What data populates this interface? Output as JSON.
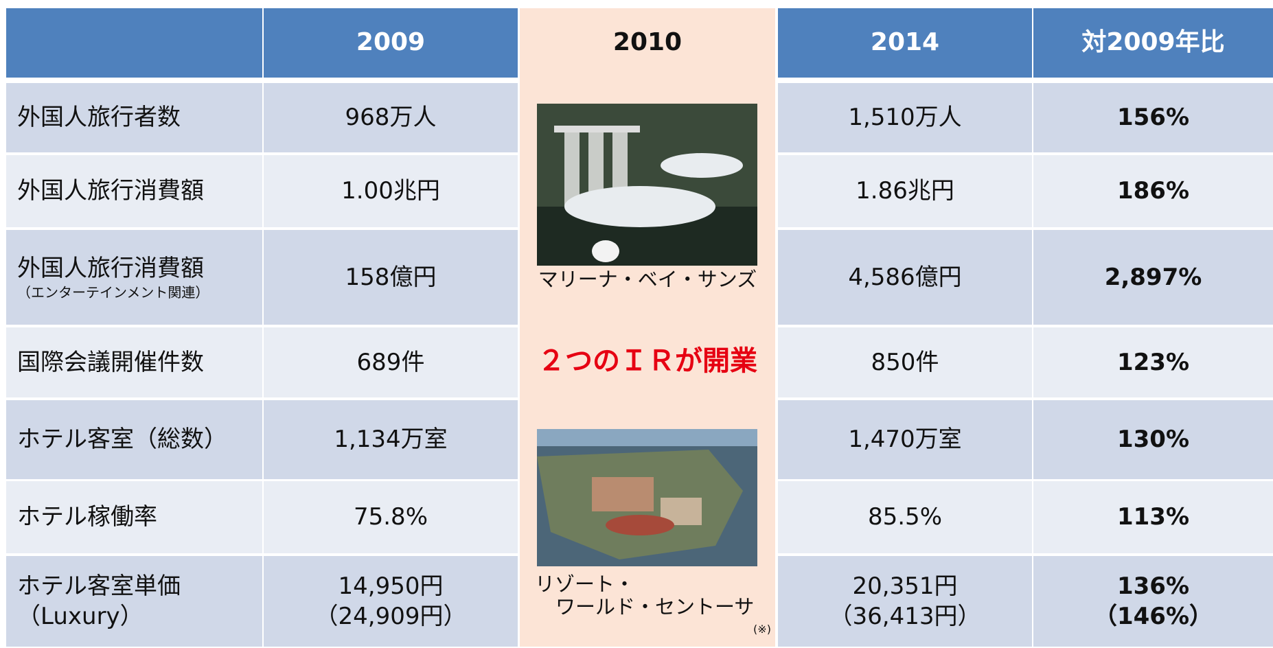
{
  "table": {
    "columns": [
      "2009",
      "2010",
      "2014",
      "対2009年比"
    ],
    "rows": [
      {
        "label": [
          "外国人旅行者数"
        ],
        "cells": [
          [
            "968万人"
          ],
          [
            "1,510万人"
          ],
          [
            "156%"
          ]
        ]
      },
      {
        "label": [
          "外国人旅行消費額"
        ],
        "cells": [
          [
            "1.00兆円"
          ],
          [
            "1.86兆円"
          ],
          [
            "186%"
          ]
        ]
      },
      {
        "label": [
          "外国人旅行消費額",
          "（エンターテインメント関連）"
        ],
        "cells": [
          [
            "158億円"
          ],
          [
            "4,586億円"
          ],
          [
            "2,897%"
          ]
        ]
      },
      {
        "label": [
          "国際会議開催件数"
        ],
        "cells": [
          [
            "689件"
          ],
          [
            "850件"
          ],
          [
            "123%"
          ]
        ]
      },
      {
        "label": [
          "ホテル客室（総数）"
        ],
        "cells": [
          [
            "1,134万室"
          ],
          [
            "1,470万室"
          ],
          [
            "130%"
          ]
        ]
      },
      {
        "label": [
          "ホテル稼働率"
        ],
        "cells": [
          [
            "75.8%"
          ],
          [
            "85.5%"
          ],
          [
            "113%"
          ]
        ]
      },
      {
        "label": [
          "ホテル客室単価",
          "（Luxury）"
        ],
        "cells": [
          [
            "14,950円",
            "（24,909円）"
          ],
          [
            "20,351円",
            "（36,413円）"
          ],
          [
            "136%",
            "（146%）"
          ]
        ]
      }
    ],
    "center": {
      "caption_1": "マリーナ・ベイ・サンズ",
      "highlight": "２つのＩＲが開業",
      "caption_2": [
        "リゾート・",
        "ワールド・セントーサ"
      ],
      "note": "(※)"
    }
  }
}
